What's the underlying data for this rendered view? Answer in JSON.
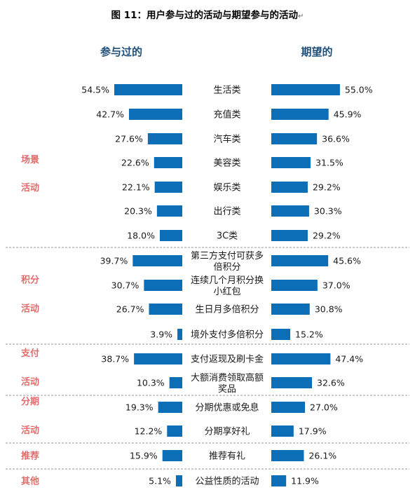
{
  "title": "图 11：用户参与过的活动与期望参与的活动",
  "title_mark": "↵",
  "colors": {
    "bar": "#0d6eb8",
    "group_label": "#e46c6c",
    "header": "#1f4e79"
  },
  "chart_data": {
    "type": "bar",
    "orientation": "horizontal-butterfly",
    "unit": "%",
    "left_header": "参与过的",
    "right_header": "期望的",
    "series": [
      {
        "name": "参与过的",
        "values": [
          54.5,
          42.7,
          27.6,
          22.6,
          22.1,
          20.3,
          18.0,
          39.7,
          30.7,
          26.7,
          3.9,
          38.7,
          10.3,
          19.3,
          12.2,
          15.9,
          5.1
        ]
      },
      {
        "name": "期望的",
        "values": [
          55.0,
          45.9,
          36.6,
          31.5,
          29.2,
          30.3,
          29.2,
          45.6,
          37.0,
          30.8,
          15.2,
          47.4,
          32.6,
          27.0,
          17.9,
          26.1,
          11.9
        ]
      }
    ],
    "categories": [
      [
        "生活类"
      ],
      [
        "充值类"
      ],
      [
        "汽车类"
      ],
      [
        "美容类"
      ],
      [
        "娱乐类"
      ],
      [
        "出行类"
      ],
      [
        "3C类"
      ],
      [
        "第三方支付可获多",
        "倍积分"
      ],
      [
        "连续几个月积分换",
        "小红包"
      ],
      [
        "生日月多倍积分"
      ],
      [
        "境外支付多倍积分"
      ],
      [
        "支付返现及刷卡金"
      ],
      [
        "大额消费领取高额",
        "奖品"
      ],
      [
        "分期优惠或免息"
      ],
      [
        "分期享好礼"
      ],
      [
        "推荐有礼"
      ],
      [
        "公益性质的活动"
      ]
    ],
    "groups": [
      {
        "lines": [
          "场景",
          "活动"
        ],
        "start": 0,
        "end": 6
      },
      {
        "lines": [
          "积分",
          "活动"
        ],
        "start": 7,
        "end": 10
      },
      {
        "lines": [
          "支付",
          "活动"
        ],
        "start": 11,
        "end": 12
      },
      {
        "lines": [
          "分期",
          "活动"
        ],
        "start": 13,
        "end": 14
      },
      {
        "lines": [
          "推荐"
        ],
        "start": 15,
        "end": 15
      },
      {
        "lines": [
          "其他"
        ],
        "start": 16,
        "end": 16
      }
    ]
  }
}
